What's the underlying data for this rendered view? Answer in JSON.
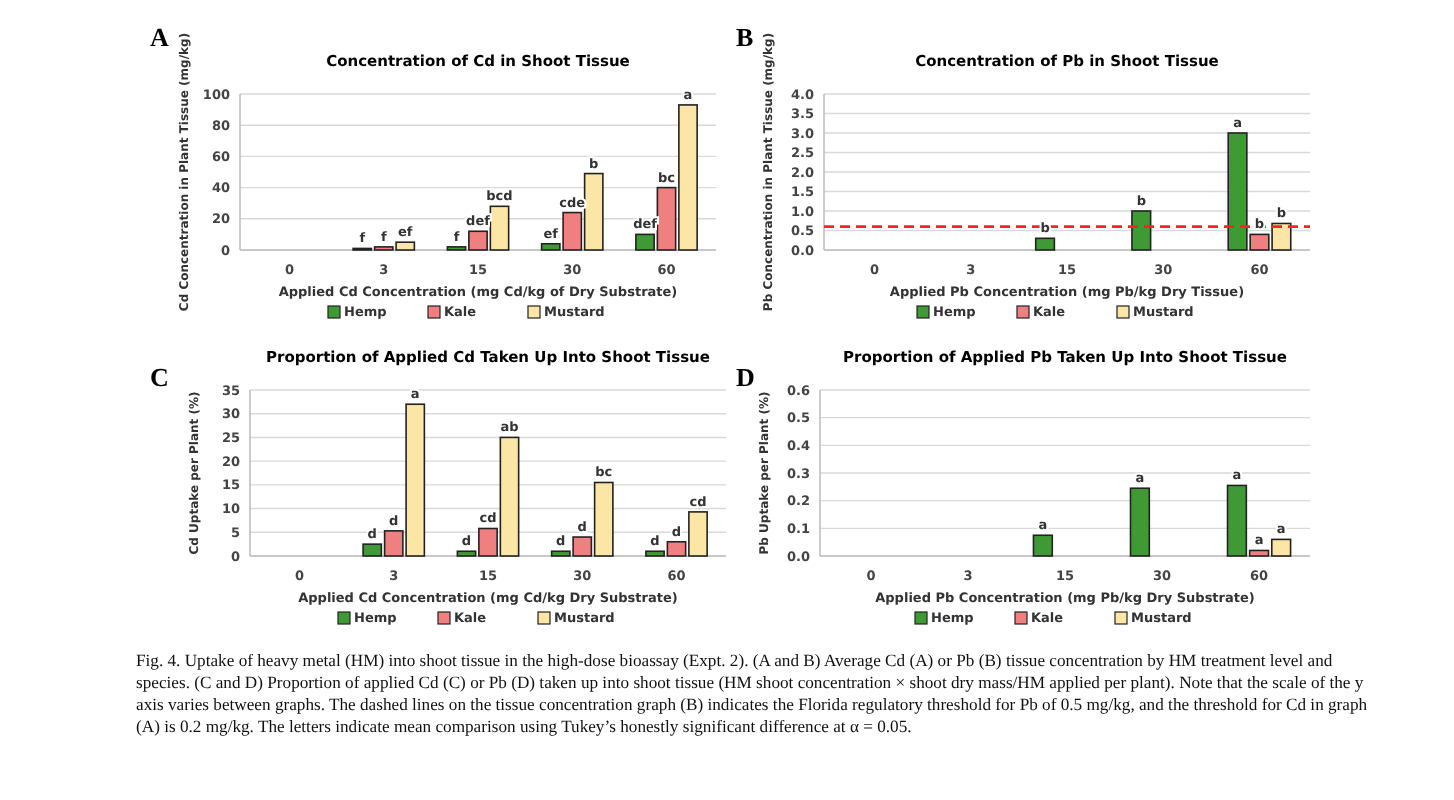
{
  "chart_data": [
    {
      "type": "bar",
      "title": "Concentration of Cd in Shoot Tissue",
      "xlabel": "Applied Cd Concentration (mg Cd/kg of Dry Substrate)",
      "ylabel": "Cd Concentration in Plant Tissue (mg/kg)",
      "annotations": [
        "A"
      ],
      "categories": [
        "0",
        "3",
        "15",
        "30",
        "60"
      ],
      "series": [
        {
          "name": "Hemp",
          "color": "#3f9a35",
          "values": [
            null,
            1,
            2,
            4,
            10
          ],
          "value_labels": [
            null,
            "f",
            "f",
            "ef",
            "def"
          ]
        },
        {
          "name": "Kale",
          "color": "#f07f80",
          "values": [
            null,
            2,
            12,
            24,
            40
          ],
          "value_labels": [
            null,
            "f",
            "def",
            "cde",
            "bc"
          ]
        },
        {
          "name": "Mustard",
          "color": "#fbe6a6",
          "values": [
            null,
            5,
            28,
            49,
            93
          ],
          "value_labels": [
            null,
            "ef",
            "bcd",
            "b",
            "a"
          ]
        }
      ],
      "ylim": [
        0,
        100
      ],
      "yticks": [
        0,
        20,
        40,
        60,
        80,
        100
      ],
      "grid": "y",
      "legend": "bottom"
    },
    {
      "type": "bar",
      "title": "Concentration of Pb in Shoot Tissue",
      "xlabel": "Applied Pb Concentration (mg Pb/kg Dry Tissue)",
      "ylabel": "Pb Concentration in Plant Tissue (mg/kg)",
      "annotations": [
        "B"
      ],
      "categories": [
        "0",
        "3",
        "15",
        "30",
        "60"
      ],
      "series": [
        {
          "name": "Hemp",
          "color": "#3f9a35",
          "values": [
            null,
            null,
            0.3,
            1.0,
            3.0
          ],
          "value_labels": [
            null,
            null,
            "b",
            "b",
            "a"
          ]
        },
        {
          "name": "Kale",
          "color": "#f07f80",
          "values": [
            null,
            null,
            null,
            null,
            0.4
          ],
          "value_labels": [
            null,
            null,
            null,
            null,
            "b"
          ]
        },
        {
          "name": "Mustard",
          "color": "#fbe6a6",
          "values": [
            null,
            null,
            null,
            null,
            0.68
          ],
          "value_labels": [
            null,
            null,
            null,
            null,
            "b"
          ]
        }
      ],
      "ylim": [
        0,
        4
      ],
      "yticks": [
        {
          "value": 0,
          "label": "0.0"
        },
        {
          "value": 0.5,
          "label": "0.5"
        },
        {
          "value": 1,
          "label": "1.0"
        },
        {
          "value": 1.5,
          "label": "1.5"
        },
        {
          "value": 2,
          "label": "2.0"
        },
        {
          "value": 2.5,
          "label": "2.5"
        },
        {
          "value": 3,
          "label": "3.0"
        },
        {
          "value": 3.5,
          "label": "3.5"
        },
        {
          "value": 4,
          "label": "4.0"
        }
      ],
      "ref_lines": [
        {
          "axis": "y",
          "value": 0.6,
          "color": "#ff2020",
          "line_style": "dashed"
        }
      ],
      "grid": "y",
      "legend": "bottom"
    },
    {
      "type": "bar",
      "title": "Proportion of Applied Cd Taken Up Into Shoot Tissue",
      "xlabel": "Applied Cd Concentration (mg Cd/kg Dry Substrate)",
      "ylabel": "Cd Uptake per Plant (%)",
      "annotations": [
        "C"
      ],
      "categories": [
        "0",
        "3",
        "15",
        "30",
        "60"
      ],
      "series": [
        {
          "name": "Hemp",
          "color": "#3f9a35",
          "values": [
            null,
            2.5,
            1,
            1,
            1
          ],
          "value_labels": [
            null,
            "d",
            "d",
            "d",
            "d"
          ]
        },
        {
          "name": "Kale",
          "color": "#f07f80",
          "values": [
            null,
            5.3,
            5.8,
            4,
            3
          ],
          "value_labels": [
            null,
            "d",
            "cd",
            "d",
            "d"
          ]
        },
        {
          "name": "Mustard",
          "color": "#fbe6a6",
          "values": [
            null,
            32,
            25,
            15.5,
            9.3
          ],
          "value_labels": [
            null,
            "a",
            "ab",
            "bc",
            "cd"
          ]
        }
      ],
      "ylim": [
        0,
        35
      ],
      "yticks": [
        0,
        5,
        10,
        15,
        20,
        25,
        30,
        35
      ],
      "grid": "y",
      "legend": "bottom"
    },
    {
      "type": "bar",
      "title": "Proportion of Applied Pb Taken Up Into Shoot Tissue",
      "xlabel": "Applied Pb Concentration (mg Pb/kg Dry Substrate)",
      "ylabel": "Pb Uptake per Plant (%)",
      "annotations": [
        "D",
        "Fig. 4. Uptake of heavy metal (HM) into shoot tissue in the high-dose bioassay (Expt. 2). (A and B) Average Cd (A) or Pb (B) tissue concentration by HM treatment level and species. (C and D) Proportion of applied Cd (C) or Pb (D) taken up into shoot tissue (HM shoot concentration × shoot dry mass/HM applied per plant). Note that the scale of the y axis varies between graphs. The dashed lines on the tissue concentration graph (B) indicates the Florida regulatory threshold for Pb of 0.5 mg/kg, and the threshold for Cd in graph (A) is 0.2 mg/kg. The letters indicate mean comparison using Tukey’s honestly significant difference at α = 0.05."
      ],
      "categories": [
        "0",
        "3",
        "15",
        "30",
        "60"
      ],
      "series": [
        {
          "name": "Hemp",
          "color": "#3f9a35",
          "values": [
            null,
            null,
            0.075,
            0.245,
            0.255
          ],
          "value_labels": [
            null,
            null,
            "a",
            "a",
            "a"
          ]
        },
        {
          "name": "Kale",
          "color": "#f07f80",
          "values": [
            null,
            null,
            null,
            null,
            0.02
          ],
          "value_labels": [
            null,
            null,
            null,
            null,
            "a"
          ]
        },
        {
          "name": "Mustard",
          "color": "#fbe6a6",
          "values": [
            null,
            null,
            null,
            null,
            0.06
          ],
          "value_labels": [
            null,
            null,
            null,
            null,
            "a"
          ]
        }
      ],
      "ylim": [
        0,
        0.6
      ],
      "yticks": [
        {
          "value": 0,
          "label": "0.0"
        },
        {
          "value": 0.1,
          "label": "0.1"
        },
        {
          "value": 0.2,
          "label": "0.2"
        },
        {
          "value": 0.3,
          "label": "0.3"
        },
        {
          "value": 0.4,
          "label": "0.4"
        },
        {
          "value": 0.5,
          "label": "0.5"
        },
        {
          "value": 0.6,
          "label": "0.6"
        }
      ],
      "grid": "y",
      "legend": "bottom"
    }
  ]
}
